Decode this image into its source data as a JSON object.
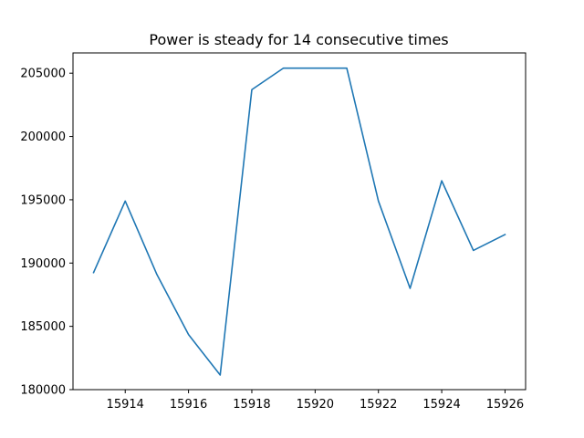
{
  "chart_data": {
    "type": "line",
    "title": "Power is steady for 14 consecutive times",
    "xlabel": "",
    "ylabel": "",
    "x": [
      15913,
      15914,
      15915,
      15916,
      15917,
      15918,
      15919,
      15920,
      15921,
      15922,
      15923,
      15924,
      15925,
      15926
    ],
    "series": [
      {
        "values": [
          189250,
          194900,
          189100,
          184350,
          181150,
          203700,
          205400,
          205400,
          205400,
          194900,
          188000,
          196500,
          191000,
          192250
        ],
        "color": "#1f77b4"
      }
    ],
    "xlim": [
      15912.35,
      15926.65
    ],
    "ylim": [
      180000,
      206600
    ],
    "xticks": [
      15914,
      15916,
      15918,
      15920,
      15922,
      15924,
      15926
    ],
    "yticks": [
      180000,
      185000,
      190000,
      195000,
      200000,
      205000
    ],
    "grid": false,
    "legend": "none"
  }
}
